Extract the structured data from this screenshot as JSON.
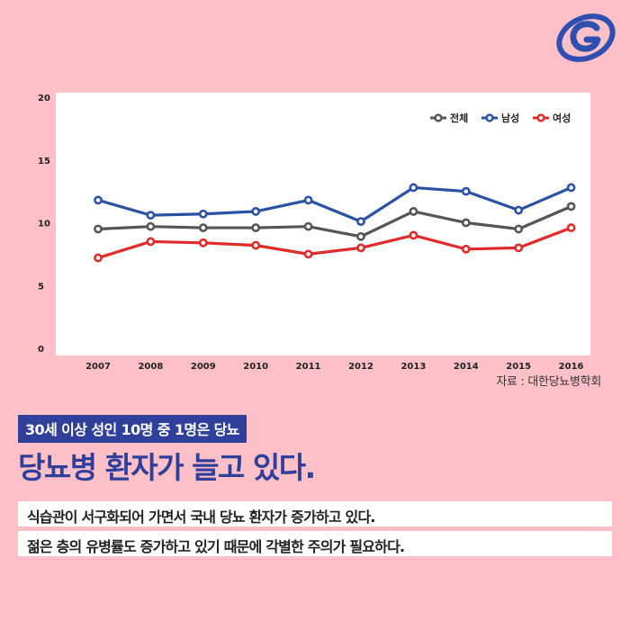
{
  "chart_data": {
    "type": "line",
    "categories": [
      "2007",
      "2008",
      "2009",
      "2010",
      "2011",
      "2012",
      "2013",
      "2014",
      "2015",
      "2016"
    ],
    "ylim": [
      0,
      20
    ],
    "yticks": [
      "0",
      "5",
      "10",
      "15",
      "20"
    ],
    "grid": false,
    "legend_position": "top-right",
    "series": [
      {
        "name": "전체",
        "color": "#555555",
        "values": [
          9.5,
          9.7,
          9.6,
          9.6,
          9.7,
          8.9,
          10.9,
          10.0,
          9.5,
          11.3
        ]
      },
      {
        "name": "남성",
        "color": "#2A52A4",
        "values": [
          11.8,
          10.6,
          10.7,
          10.9,
          11.8,
          10.1,
          12.8,
          12.5,
          11.0,
          12.8
        ]
      },
      {
        "name": "여성",
        "color": "#E02B2B",
        "values": [
          7.2,
          8.5,
          8.4,
          8.2,
          7.5,
          8.0,
          9.0,
          7.9,
          8.0,
          9.6
        ]
      }
    ]
  },
  "source": "자료 : 대한당뇨병학회",
  "tagline": "30세 이상 성인 10명 중 1명은 당뇨",
  "headline": "당뇨병 환자가 늘고 있다.",
  "body": [
    "식습관이 서구화되어 가면서 국내 당뇨 환자가 증가하고 있다.",
    "젊은 층의 유병률도 증가하고 있기 때문에 각별한 주의가 필요하다."
  ],
  "colors": {
    "background": "#FFC0C8",
    "accent": "#2F3F9A"
  },
  "icons": {
    "logo": "g-logo-icon"
  }
}
